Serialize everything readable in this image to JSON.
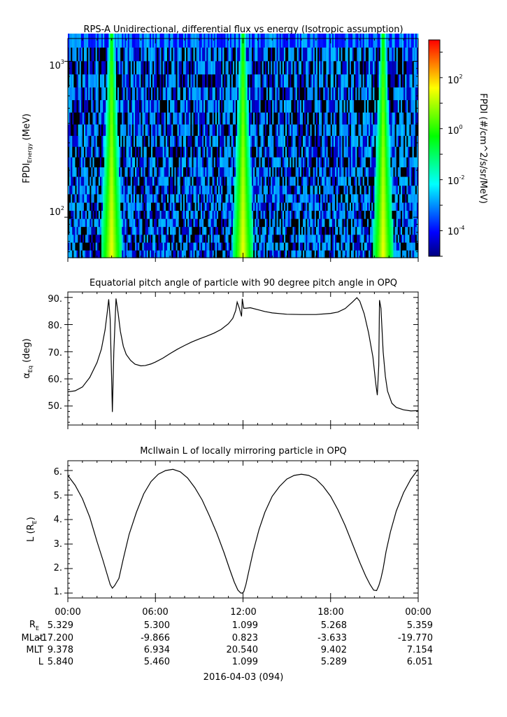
{
  "x_axis": {
    "tick_labels": [
      "00:00",
      "06:00",
      "12:00",
      "18:00",
      "00:00"
    ],
    "date_label": "2016-04-03 (094)",
    "row_names": [
      "RE",
      "MLat",
      "MLT",
      "L"
    ],
    "rows": [
      [
        "5.329",
        "5.300",
        "1.099",
        "5.268",
        "5.359"
      ],
      [
        "-17.200",
        "-9.866",
        "0.823",
        "-3.633",
        "-19.770"
      ],
      [
        "9.378",
        "6.934",
        "20.540",
        "9.402",
        "7.154"
      ],
      [
        "5.840",
        "5.460",
        "1.099",
        "5.289",
        "6.051"
      ]
    ]
  },
  "chart_data": [
    {
      "type": "heatmap",
      "title": "RPS-A Unidirectional, differential flux vs energy (Isotropic assumption)",
      "ylabel": "FPDI",
      "ylabel_sub": "Energy",
      "ylabel_unit": "(MeV)",
      "yscale": "log",
      "ylim": [
        55,
        1400
      ],
      "xlim_hours": [
        0,
        24
      ],
      "ytick_bases": [
        "10",
        "10"
      ],
      "ytick_exps": [
        "3",
        "2"
      ],
      "ytick_values": [
        1000,
        100
      ],
      "energy_channels": [
        58,
        65,
        73,
        82,
        92,
        104,
        117,
        132,
        150,
        170,
        195,
        225,
        262,
        307,
        362,
        430,
        515,
        620,
        750,
        910,
        1110,
        1360
      ],
      "band_centers_hours": [
        3.0,
        12.0,
        21.6
      ],
      "colorbar": {
        "label": "FPDI (#/cm^2/s/sr/MeV)",
        "scale": "log",
        "range": [
          1e-05,
          3000
        ],
        "tick_bases": [
          "10",
          "10",
          "10",
          "10"
        ],
        "tick_exps": [
          "2",
          "0",
          "-2",
          "-4"
        ],
        "tick_values": [
          100,
          1,
          0.01,
          0.0001
        ],
        "colors": [
          "#00007f",
          "#0000ff",
          "#007fff",
          "#00ffff",
          "#00ff7f",
          "#00ff00",
          "#7fff00",
          "#ffff00",
          "#ff7f00",
          "#ff0000"
        ]
      }
    },
    {
      "type": "line",
      "title": "Equatorial pitch angle of particle with 90 degree pitch angle in OPQ",
      "ylabel_symbol": "α",
      "ylabel_sub": "Eq",
      "ylabel_unit": "(deg)",
      "ylim": [
        43,
        92
      ],
      "xlim_hours": [
        0,
        24
      ],
      "yticks": [
        "50.",
        "60.",
        "70.",
        "80.",
        "90."
      ],
      "ytick_values": [
        50,
        60,
        70,
        80,
        90
      ],
      "series": [
        {
          "x": [
            0,
            0.5,
            1.0,
            1.5,
            2.0,
            2.3,
            2.55,
            2.7,
            2.8,
            2.9,
            3.0,
            3.05,
            3.15,
            3.3,
            3.45,
            3.6,
            3.8,
            4.0,
            4.3,
            4.6,
            5.0,
            5.3,
            5.7,
            6.0,
            6.5,
            7.0,
            7.5,
            8.0,
            8.5,
            9.0,
            9.5,
            10.0,
            10.5,
            11.0,
            11.3,
            11.5,
            11.6,
            11.75,
            11.9,
            11.95,
            12.05,
            12.2,
            12.5,
            13.0,
            13.5,
            14.0,
            15.0,
            16.0,
            17.0,
            18.0,
            18.5,
            19.0,
            19.5,
            19.8,
            20.0,
            20.3,
            20.6,
            20.9,
            21.1,
            21.2,
            21.3,
            21.35,
            21.45,
            21.6,
            21.75,
            21.9,
            22.2,
            22.5,
            23.0,
            23.5,
            24.0
          ],
          "y": [
            55.2,
            55.6,
            57.0,
            60.5,
            66.0,
            71.0,
            78.0,
            84.5,
            89.3,
            82.0,
            60.0,
            47.8,
            70.0,
            89.6,
            84.0,
            77.5,
            72.0,
            69.0,
            66.8,
            65.4,
            64.8,
            64.9,
            65.5,
            66.2,
            67.6,
            69.3,
            70.9,
            72.3,
            73.6,
            74.7,
            75.7,
            76.8,
            78.2,
            80.3,
            82.3,
            85.2,
            88.3,
            86.0,
            83.0,
            89.5,
            86.0,
            86.0,
            86.2,
            85.5,
            84.8,
            84.3,
            83.8,
            83.7,
            83.7,
            84.1,
            84.6,
            85.9,
            88.3,
            89.9,
            88.6,
            84.0,
            77.0,
            68.0,
            58.0,
            54.0,
            65.0,
            89.0,
            86.0,
            70.0,
            61.0,
            55.5,
            51.0,
            49.5,
            48.6,
            48.2,
            48.3
          ]
        }
      ]
    },
    {
      "type": "line",
      "title": "McIlwain L of locally mirroring particle in OPQ",
      "ylabel_main": "L (R",
      "ylabel_sub": "E",
      "ylabel_close": ")",
      "ylim": [
        0.8,
        6.4
      ],
      "xlim_hours": [
        0,
        24
      ],
      "yticks": [
        "1.",
        "2.",
        "3.",
        "4.",
        "5.",
        "6."
      ],
      "ytick_values": [
        1,
        2,
        3,
        4,
        5,
        6
      ],
      "series": [
        {
          "x": [
            0,
            0.5,
            1.0,
            1.5,
            2.0,
            2.4,
            2.7,
            2.9,
            3.05,
            3.2,
            3.35,
            3.5,
            3.8,
            4.2,
            4.7,
            5.2,
            5.7,
            6.2,
            6.7,
            7.2,
            7.7,
            8.2,
            8.7,
            9.2,
            9.7,
            10.2,
            10.7,
            11.1,
            11.4,
            11.65,
            11.85,
            11.95,
            12.05,
            12.2,
            12.4,
            12.7,
            13.1,
            13.5,
            14.0,
            14.5,
            15.0,
            15.5,
            16.0,
            16.5,
            17.0,
            17.5,
            18.0,
            18.5,
            19.0,
            19.5,
            20.0,
            20.4,
            20.7,
            20.95,
            21.15,
            21.3,
            21.45,
            21.6,
            21.8,
            22.1,
            22.5,
            23.0,
            23.5,
            24.0
          ],
          "y": [
            5.8,
            5.4,
            4.85,
            4.1,
            3.1,
            2.35,
            1.75,
            1.35,
            1.2,
            1.3,
            1.45,
            1.6,
            2.4,
            3.4,
            4.3,
            5.05,
            5.55,
            5.85,
            6.0,
            6.05,
            5.95,
            5.7,
            5.3,
            4.8,
            4.15,
            3.45,
            2.65,
            1.95,
            1.45,
            1.12,
            1.0,
            1.0,
            1.05,
            1.35,
            1.9,
            2.7,
            3.6,
            4.3,
            4.95,
            5.35,
            5.65,
            5.8,
            5.85,
            5.8,
            5.65,
            5.35,
            4.95,
            4.4,
            3.75,
            3.0,
            2.25,
            1.7,
            1.35,
            1.12,
            1.1,
            1.3,
            1.6,
            2.0,
            2.7,
            3.5,
            4.35,
            5.1,
            5.65,
            6.05
          ]
        }
      ]
    }
  ]
}
